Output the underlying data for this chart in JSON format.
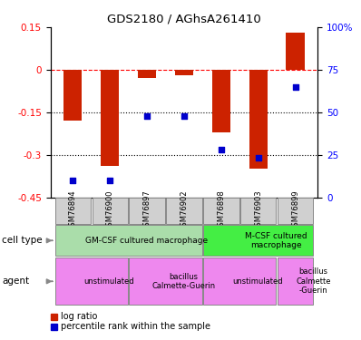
{
  "title": "GDS2180 / AGhsA261410",
  "samples": [
    "GSM76894",
    "GSM76900",
    "GSM76897",
    "GSM76902",
    "GSM76898",
    "GSM76903",
    "GSM76899"
  ],
  "log_ratio": [
    -0.18,
    -0.34,
    -0.03,
    -0.02,
    -0.22,
    -0.35,
    0.13
  ],
  "percentile_rank": [
    10,
    10,
    48,
    48,
    28,
    23,
    65
  ],
  "ylim_left": [
    -0.45,
    0.15
  ],
  "ylim_right": [
    0,
    100
  ],
  "left_ticks": [
    0.15,
    0,
    -0.15,
    -0.3,
    -0.45
  ],
  "right_ticks": [
    100,
    75,
    50,
    25,
    0
  ],
  "hlines": [
    0,
    -0.15,
    -0.3
  ],
  "bar_color": "#cc2200",
  "scatter_color": "#0000cc",
  "bar_width": 0.5,
  "cell_type_row": [
    {
      "label": "GM-CSF cultured macrophage",
      "color": "#aaddaa",
      "xstart": 0,
      "xend": 4
    },
    {
      "label": "M-CSF cultured\nmacrophage",
      "color": "#44ee44",
      "xstart": 4,
      "xend": 7
    }
  ],
  "agent_row": [
    {
      "label": "unstimulated",
      "color": "#ee88ee",
      "xstart": 0,
      "xend": 2
    },
    {
      "label": "bacillus\nCalmette-Guerin",
      "color": "#ee88ee",
      "xstart": 2,
      "xend": 4
    },
    {
      "label": "unstimulated",
      "color": "#ee88ee",
      "xstart": 4,
      "xend": 6
    },
    {
      "label": "bacillus\nCalmette\n-Guerin",
      "color": "#ee88ee",
      "xstart": 6,
      "xend": 7
    }
  ],
  "legend_bar_label": "log ratio",
  "legend_scatter_label": "percentile rank within the sample",
  "cell_type_label": "cell type",
  "agent_label": "agent",
  "sample_box_color": "#d0d0d0"
}
